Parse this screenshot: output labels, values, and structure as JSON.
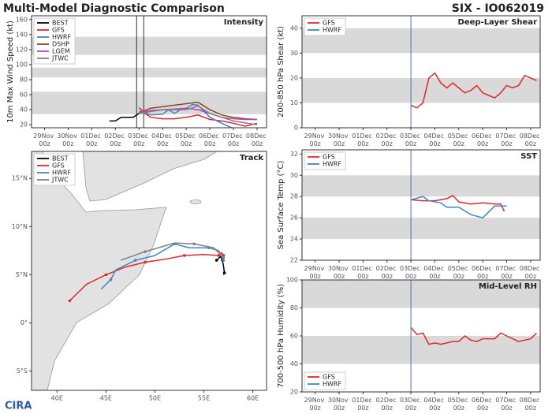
{
  "header": {
    "title": "Multi-Model Diagnostic Comparison",
    "storm": "SIX - IO062019"
  },
  "logo": "CIRA",
  "chart_data": [
    {
      "type": "line",
      "title": "Intensity",
      "ylabel": "10m Max Wind Speed (kt)",
      "xlim": [
        -0.55,
        9.4
      ],
      "ylim": [
        16,
        165
      ],
      "xticks": [
        {
          "value": 0,
          "label": "29Nov 00z"
        },
        {
          "value": 1,
          "label": "30Nov 00z"
        },
        {
          "value": 2,
          "label": "01Dec 00z"
        },
        {
          "value": 3,
          "label": "02Dec 00z"
        },
        {
          "value": 4,
          "label": "03Dec 00z"
        },
        {
          "value": 5,
          "label": "04Dec 00z"
        },
        {
          "value": 6,
          "label": "05Dec 00z"
        },
        {
          "value": 7,
          "label": "06Dec 00z"
        },
        {
          "value": 8,
          "label": "07Dec 00z"
        },
        {
          "value": 9,
          "label": "08Dec 00z"
        }
      ],
      "yticks": [
        20,
        40,
        60,
        80,
        100,
        120,
        140,
        160
      ],
      "bands": [
        [
          34,
          64
        ],
        [
          83,
          96
        ],
        [
          113,
          137
        ]
      ],
      "vlines": [
        3.9,
        4.2
      ],
      "vline_color": "#333333",
      "legend": "upper left",
      "series": [
        {
          "name": "BEST",
          "color": "#000000",
          "x": [
            2.75,
            3.0,
            3.25,
            3.5,
            3.75,
            4.0
          ],
          "values": [
            25,
            25,
            30,
            30,
            30,
            35
          ]
        },
        {
          "name": "GFS",
          "color": "#e3262b",
          "x": [
            4.0,
            4.25,
            4.5,
            5.0,
            5.5,
            6.0,
            6.5,
            7.0,
            7.5,
            8.0,
            8.5,
            9.0
          ],
          "values": [
            43,
            35,
            30,
            28,
            28,
            30,
            33,
            27,
            25,
            22,
            18,
            22
          ]
        },
        {
          "name": "HWRF",
          "color": "#3f86c4",
          "x": [
            4.0,
            4.25,
            4.5,
            5.0,
            5.25,
            5.5,
            5.75,
            6.0,
            6.25,
            6.5,
            6.75,
            7.0,
            7.5,
            8.0,
            8.5
          ],
          "values": [
            38,
            36,
            33,
            34,
            40,
            35,
            40,
            42,
            47,
            46,
            38,
            30,
            22,
            15,
            14
          ]
        },
        {
          "name": "DSHP",
          "color": "#8b4a1c",
          "x": [
            4.0,
            4.5,
            5.0,
            5.5,
            6.0,
            6.5,
            7.0,
            7.5,
            8.0,
            8.5,
            9.0
          ],
          "values": [
            36,
            42,
            44,
            46,
            48,
            50,
            40,
            33,
            30,
            28,
            27
          ]
        },
        {
          "name": "LGEM",
          "color": "#c040c0",
          "x": [
            4.0,
            4.5,
            5.0,
            5.5,
            6.0,
            6.5,
            7.0,
            7.5,
            8.0,
            8.5,
            9.0
          ],
          "values": [
            36,
            39,
            40,
            41,
            42,
            40,
            35,
            30,
            28,
            27,
            27
          ]
        },
        {
          "name": "JTWC",
          "color": "#808080",
          "x": [
            4.0,
            5.0,
            6.0,
            6.5,
            7.0,
            8.0,
            9.0
          ],
          "values": [
            35,
            40,
            40,
            45,
            35,
            25,
            20
          ]
        }
      ]
    },
    {
      "type": "line",
      "title": "Deep-Layer Shear",
      "ylabel": "200-850 hPa Shear (kt)",
      "xlim": [
        -0.55,
        9.4
      ],
      "ylim": [
        0,
        45
      ],
      "xticks": [
        {
          "value": 0,
          "label": "29Nov 00z"
        },
        {
          "value": 1,
          "label": "30Nov 00z"
        },
        {
          "value": 2,
          "label": "01Dec 00z"
        },
        {
          "value": 3,
          "label": "02Dec 00z"
        },
        {
          "value": 4,
          "label": "03Dec 00z"
        },
        {
          "value": 5,
          "label": "04Dec 00z"
        },
        {
          "value": 6,
          "label": "05Dec 00z"
        },
        {
          "value": 7,
          "label": "06Dec 00z"
        },
        {
          "value": 8,
          "label": "07Dec 00z"
        },
        {
          "value": 9,
          "label": "08Dec 00z"
        }
      ],
      "yticks": [
        0,
        10,
        20,
        30,
        40
      ],
      "bands": [
        [
          10,
          20
        ],
        [
          30,
          40
        ]
      ],
      "vlines": [
        4.0
      ],
      "vline_color": "#4a6fb5",
      "legend": "upper left",
      "series": [
        {
          "name": "GFS",
          "color": "#e3262b",
          "x": [
            4.0,
            4.25,
            4.5,
            4.75,
            5.0,
            5.25,
            5.5,
            5.75,
            6.0,
            6.25,
            6.5,
            6.75,
            7.0,
            7.25,
            7.5,
            7.75,
            8.0,
            8.25,
            8.5,
            8.75,
            9.0,
            9.25
          ],
          "values": [
            9,
            8,
            10,
            20,
            22,
            18,
            16,
            18,
            16,
            14,
            15,
            17,
            14,
            13,
            12,
            14,
            17,
            16,
            17,
            21,
            20,
            19
          ]
        },
        {
          "name": "HWRF",
          "color": "#3f86c4",
          "x": [],
          "values": []
        }
      ]
    },
    {
      "type": "line",
      "title": "SST",
      "ylabel": "Sea Surface Temp (°C)",
      "xlim": [
        -0.55,
        9.4
      ],
      "ylim": [
        22,
        32.4
      ],
      "xticks": [
        {
          "value": 0,
          "label": "29Nov 00z"
        },
        {
          "value": 1,
          "label": "30Nov 00z"
        },
        {
          "value": 2,
          "label": "01Dec 00z"
        },
        {
          "value": 3,
          "label": "02Dec 00z"
        },
        {
          "value": 4,
          "label": "03Dec 00z"
        },
        {
          "value": 5,
          "label": "04Dec 00z"
        },
        {
          "value": 6,
          "label": "05Dec 00z"
        },
        {
          "value": 7,
          "label": "06Dec 00z"
        },
        {
          "value": 8,
          "label": "07Dec 00z"
        },
        {
          "value": 9,
          "label": "08Dec 00z"
        }
      ],
      "yticks": [
        22,
        24,
        26,
        28,
        30,
        32
      ],
      "bands": [
        [
          24,
          26
        ],
        [
          28,
          30
        ]
      ],
      "vlines": [
        4.0
      ],
      "vline_color": "#4a6fb5",
      "legend": "upper left",
      "series": [
        {
          "name": "GFS",
          "color": "#e3262b",
          "x": [
            4.0,
            4.5,
            5.0,
            5.5,
            5.75,
            6.0,
            6.5,
            7.0,
            7.5,
            7.75,
            7.9
          ],
          "values": [
            27.7,
            27.6,
            27.6,
            27.8,
            28.1,
            27.5,
            27.3,
            27.4,
            27.3,
            27.3,
            26.6
          ]
        },
        {
          "name": "HWRF",
          "color": "#3f86c4",
          "x": [
            4.0,
            4.5,
            4.75,
            5.25,
            5.5,
            6.0,
            6.5,
            7.0,
            7.5,
            8.0
          ],
          "values": [
            27.7,
            28.0,
            27.6,
            27.4,
            27.0,
            27.0,
            26.3,
            26.0,
            27.1,
            27.1
          ]
        }
      ]
    },
    {
      "type": "line",
      "title": "Mid-Level RH",
      "ylabel": "700-500 hPa Humidity (%)",
      "xlim": [
        -0.55,
        9.4
      ],
      "ylim": [
        20,
        100
      ],
      "xticks": [
        {
          "value": 0,
          "label": "29Nov 00z"
        },
        {
          "value": 1,
          "label": "30Nov 00z"
        },
        {
          "value": 2,
          "label": "01Dec 00z"
        },
        {
          "value": 3,
          "label": "02Dec 00z"
        },
        {
          "value": 4,
          "label": "03Dec 00z"
        },
        {
          "value": 5,
          "label": "04Dec 00z"
        },
        {
          "value": 6,
          "label": "05Dec 00z"
        },
        {
          "value": 7,
          "label": "06Dec 00z"
        },
        {
          "value": 8,
          "label": "07Dec 00z"
        },
        {
          "value": 9,
          "label": "08Dec 00z"
        }
      ],
      "yticks": [
        20,
        40,
        60,
        80,
        100
      ],
      "bands": [
        [
          40,
          60
        ],
        [
          80,
          100
        ]
      ],
      "vlines": [
        4.0
      ],
      "vline_color": "#4a6fb5",
      "legend": "lower left",
      "series": [
        {
          "name": "GFS",
          "color": "#e3262b",
          "x": [
            4.0,
            4.25,
            4.5,
            4.75,
            5.0,
            5.25,
            5.5,
            5.75,
            6.0,
            6.25,
            6.5,
            6.75,
            7.0,
            7.25,
            7.5,
            7.75,
            8.0,
            8.25,
            8.5,
            8.75,
            9.0,
            9.25
          ],
          "values": [
            66,
            61,
            62,
            54,
            55,
            54,
            55,
            56,
            56,
            60,
            57,
            56,
            58,
            58,
            58,
            62,
            60,
            58,
            56,
            57,
            58,
            62
          ]
        },
        {
          "name": "HWRF",
          "color": "#3f86c4",
          "x": [],
          "values": []
        }
      ]
    },
    {
      "type": "track",
      "title": "Track",
      "xlim": [
        37.4,
        61.4
      ],
      "ylim": [
        -7,
        17.8
      ],
      "xticks": [
        {
          "value": 40,
          "label": "40E"
        },
        {
          "value": 45,
          "label": "45E"
        },
        {
          "value": 50,
          "label": "50E"
        },
        {
          "value": 55,
          "label": "55E"
        },
        {
          "value": 60,
          "label": "60E"
        }
      ],
      "yticks": [
        {
          "value": 15,
          "label": "15°N"
        },
        {
          "value": 10,
          "label": "10°N"
        },
        {
          "value": 5,
          "label": "5°N"
        },
        {
          "value": 0,
          "label": "0°"
        },
        {
          "value": -5,
          "label": "5°S"
        }
      ],
      "legend": "upper left",
      "series": [
        {
          "name": "BEST",
          "color": "#000000",
          "lon": [
            56.3,
            56.7,
            56.9,
            57.0,
            57.1,
            57.0
          ],
          "lat": [
            6.5,
            6.9,
            6.5,
            5.9,
            5.2,
            5.0
          ]
        },
        {
          "name": "GFS",
          "color": "#e3262b",
          "lon": [
            57.0,
            56.8,
            56.5,
            55.0,
            53.0,
            51.0,
            49.0,
            47.0,
            45.0,
            43.0,
            41.3
          ],
          "lat": [
            7.0,
            7.3,
            7.0,
            7.1,
            7.0,
            6.6,
            6.3,
            5.8,
            5.0,
            4.0,
            2.3
          ]
        },
        {
          "name": "HWRF",
          "color": "#3f86c4",
          "lon": [
            57.0,
            56.5,
            55.5,
            53.5,
            52.0,
            50.0,
            48.0,
            46.0,
            45.5,
            44.5
          ],
          "lat": [
            6.5,
            7.5,
            7.8,
            7.8,
            8.2,
            7.0,
            6.5,
            5.5,
            4.5,
            3.5
          ]
        },
        {
          "name": "JTWC",
          "color": "#808080",
          "lon": [
            57.0,
            56.0,
            54.0,
            52.0,
            49.0,
            46.5
          ],
          "lat": [
            6.8,
            7.8,
            8.2,
            8.3,
            7.4,
            6.5
          ]
        }
      ]
    }
  ]
}
